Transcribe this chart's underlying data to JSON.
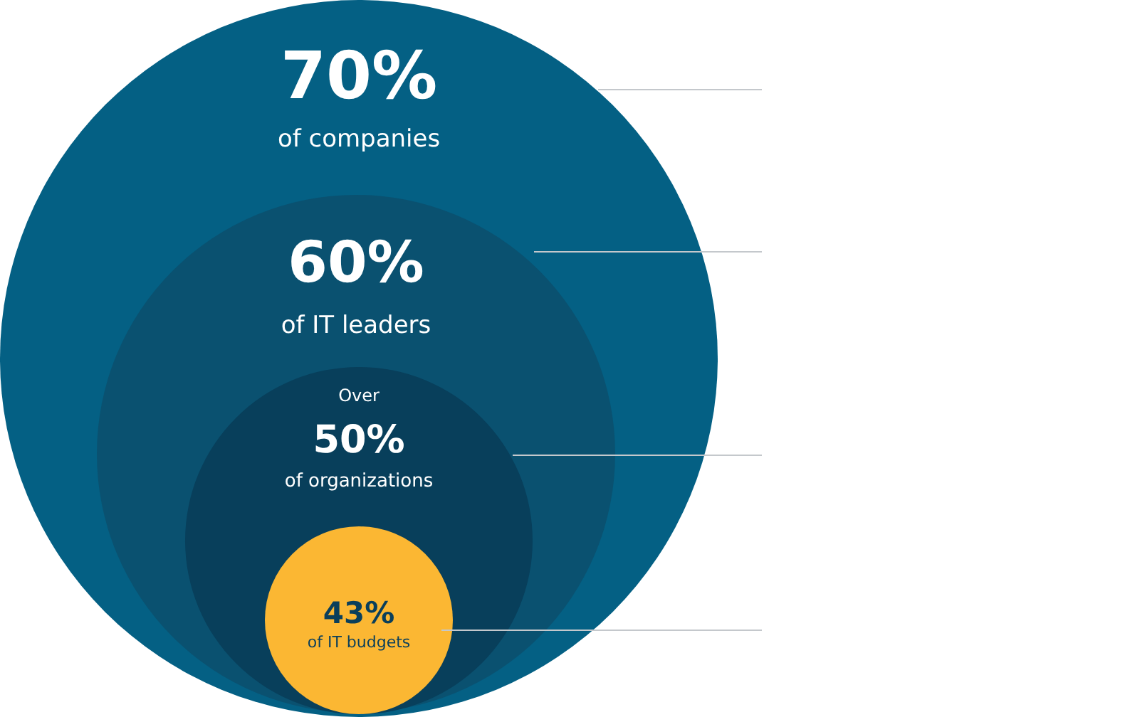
{
  "chart_data": {
    "type": "other",
    "categories": [
      "of companies",
      "of IT leaders",
      "of organizations",
      "of IT budgets"
    ],
    "values": [
      70,
      60,
      50,
      43
    ],
    "value_labels": [
      "70%",
      "60%",
      "50%",
      "43%"
    ],
    "colors": [
      "#046084",
      "#0a5170",
      "#083f5b",
      "#fbb733"
    ],
    "annotations": [
      {
        "text": "Over",
        "x": "of organizations"
      }
    ]
  }
}
